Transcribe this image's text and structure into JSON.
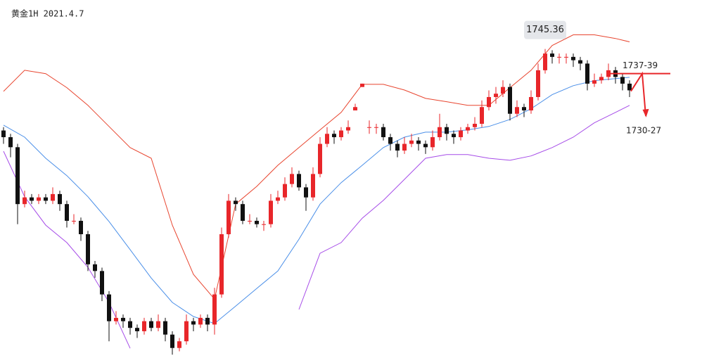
{
  "chart_data": {
    "type": "candlestick",
    "title": "黄金1H 2021.4.7",
    "ylim": [
      1653,
      1760
    ],
    "up_color": "#e8262a",
    "down_color": "#111111",
    "candles": [
      [
        1721,
        1722,
        1717,
        1719
      ],
      [
        1719,
        1720,
        1713,
        1716
      ],
      [
        1716,
        1717,
        1693,
        1699
      ],
      [
        1699,
        1703,
        1698,
        1701
      ],
      [
        1701,
        1702,
        1699,
        1700
      ],
      [
        1700,
        1702,
        1699,
        1701
      ],
      [
        1701,
        1702,
        1699,
        1700
      ],
      [
        1700,
        1704,
        1699,
        1702
      ],
      [
        1702,
        1703,
        1697,
        1699
      ],
      [
        1699,
        1700,
        1692,
        1694
      ],
      [
        1694,
        1696,
        1693,
        1694
      ],
      [
        1694,
        1695,
        1688,
        1690
      ],
      [
        1690,
        1691,
        1679,
        1681
      ],
      [
        1681,
        1682,
        1677,
        1679
      ],
      [
        1679,
        1680,
        1670,
        1672
      ],
      [
        1672,
        1673,
        1658,
        1664
      ],
      [
        1664,
        1667,
        1663,
        1665
      ],
      [
        1665,
        1666,
        1662,
        1664
      ],
      [
        1664,
        1665,
        1660,
        1662
      ],
      [
        1662,
        1663,
        1659,
        1661
      ],
      [
        1661,
        1665,
        1660,
        1664
      ],
      [
        1664,
        1665,
        1661,
        1662
      ],
      [
        1662,
        1666,
        1661,
        1664
      ],
      [
        1664,
        1665,
        1658,
        1660
      ],
      [
        1660,
        1661,
        1654,
        1656
      ],
      [
        1656,
        1659,
        1655,
        1658
      ],
      [
        1658,
        1666,
        1657,
        1664
      ],
      [
        1664,
        1665,
        1661,
        1663
      ],
      [
        1663,
        1666,
        1662,
        1665
      ],
      [
        1665,
        1666,
        1661,
        1663
      ],
      [
        1663,
        1674,
        1660,
        1672
      ],
      [
        1672,
        1692,
        1671,
        1690
      ],
      [
        1690,
        1702,
        1689,
        1700
      ],
      [
        1700,
        1701,
        1697,
        1699
      ],
      [
        1699,
        1700,
        1693,
        1694
      ],
      [
        1694,
        1696,
        1693,
        1694
      ],
      [
        1694,
        1695,
        1692,
        1693
      ],
      [
        1693,
        1694,
        1691,
        1693
      ],
      [
        1693,
        1702,
        1692,
        1700
      ],
      [
        1700,
        1703,
        1699,
        1701
      ],
      [
        1701,
        1707,
        1700,
        1705
      ],
      [
        1705,
        1710,
        1704,
        1708
      ],
      [
        1708,
        1709,
        1703,
        1704
      ],
      [
        1704,
        1705,
        1697,
        1701
      ],
      [
        1701,
        1710,
        1700,
        1708
      ],
      [
        1708,
        1719,
        1707,
        1717
      ],
      [
        1717,
        1722,
        1716,
        1720
      ],
      [
        1720,
        1721,
        1717,
        1719
      ],
      [
        1719,
        1722,
        1718,
        1721
      ],
      [
        1721,
        1724,
        1720,
        1722
      ],
      [
        1727,
        1729,
        1727,
        1728
      ],
      [
        1734,
        1735,
        1734,
        1735
      ],
      [
        1722,
        1724,
        1720,
        1722
      ],
      [
        1722,
        1723,
        1720,
        1722
      ],
      [
        1722,
        1723,
        1718,
        1719
      ],
      [
        1719,
        1720,
        1715,
        1717
      ],
      [
        1717,
        1718,
        1713,
        1715
      ],
      [
        1715,
        1719,
        1714,
        1717
      ],
      [
        1717,
        1720,
        1716,
        1718
      ],
      [
        1718,
        1719,
        1715,
        1717
      ],
      [
        1717,
        1718,
        1714,
        1716
      ],
      [
        1716,
        1721,
        1715,
        1719
      ],
      [
        1719,
        1726,
        1718,
        1722
      ],
      [
        1722,
        1723,
        1718,
        1720
      ],
      [
        1720,
        1721,
        1717,
        1719
      ],
      [
        1719,
        1722,
        1718,
        1721
      ],
      [
        1721,
        1723,
        1720,
        1722
      ],
      [
        1722,
        1725,
        1721,
        1723
      ],
      [
        1723,
        1730,
        1722,
        1728
      ],
      [
        1728,
        1733,
        1727,
        1731
      ],
      [
        1731,
        1734,
        1729,
        1732
      ],
      [
        1732,
        1736,
        1731,
        1734
      ],
      [
        1734,
        1735,
        1724,
        1726
      ],
      [
        1726,
        1730,
        1725,
        1728
      ],
      [
        1728,
        1729,
        1725,
        1727
      ],
      [
        1727,
        1733,
        1726,
        1731
      ],
      [
        1731,
        1741,
        1730,
        1739
      ],
      [
        1739,
        1745.36,
        1738,
        1744
      ],
      [
        1744,
        1745,
        1741,
        1743
      ],
      [
        1743,
        1744,
        1741,
        1743
      ],
      [
        1743,
        1744,
        1741,
        1743
      ],
      [
        1743,
        1744,
        1740,
        1742
      ],
      [
        1742,
        1743,
        1739,
        1741
      ],
      [
        1741,
        1742,
        1733,
        1735
      ],
      [
        1735,
        1738,
        1734,
        1736
      ],
      [
        1736,
        1738,
        1735,
        1737
      ],
      [
        1737,
        1741,
        1736,
        1739
      ],
      [
        1739,
        1740,
        1735,
        1737
      ],
      [
        1737,
        1738,
        1733,
        1735
      ],
      [
        1735,
        1736,
        1731,
        1733
      ]
    ],
    "band_x": [
      0,
      3,
      6,
      9,
      12,
      15,
      18,
      21,
      24,
      27,
      30,
      33,
      36,
      39,
      42,
      45,
      48,
      51,
      54,
      57,
      60,
      63,
      66,
      69,
      72,
      75,
      78,
      81,
      84,
      87,
      89
    ],
    "bands": [
      {
        "color": "#e8452f",
        "values": [
          1732.7,
          1739.0,
          1738.0,
          1733.8,
          1728.5,
          1722.2,
          1715.9,
          1712.7,
          1692.7,
          1678.0,
          1670.6,
          1699.0,
          1704.3,
          1710.6,
          1715.9,
          1721.2,
          1726.4,
          1734.8,
          1734.8,
          1733.1,
          1730.6,
          1729.6,
          1728.5,
          1728.5,
          1733.8,
          1739.0,
          1746.4,
          1749.6,
          1749.6,
          1748.5,
          1747.5
        ]
      },
      {
        "color": "#4a8fe8",
        "values": [
          1722.6,
          1719.0,
          1712.7,
          1707.5,
          1701.2,
          1693.8,
          1685.4,
          1676.9,
          1669.6,
          1665.4,
          1663.3,
          1668.5,
          1673.8,
          1679.0,
          1688.5,
          1699.0,
          1705.4,
          1710.6,
          1715.9,
          1719.0,
          1720.5,
          1720.5,
          1721.2,
          1722.2,
          1724.3,
          1727.5,
          1731.7,
          1734.4,
          1735.9,
          1736.5,
          1736.9
        ]
      },
      {
        "color": "#a64ce8",
        "values": [
          1714.8,
          1701.2,
          1692.7,
          1687.5,
          1680.1,
          1669.6,
          1655.9,
          null,
          null,
          null,
          null,
          null,
          null,
          null,
          1667.5,
          1684.3,
          1687.5,
          1694.8,
          1700.1,
          1706.4,
          1712.7,
          1713.8,
          1713.8,
          1712.7,
          1712.1,
          1713.4,
          1715.9,
          1719.0,
          1723.3,
          1726.4,
          1728.5
        ]
      }
    ],
    "high_label_candle": 77,
    "levels": [
      {
        "label": "1737-39",
        "value": 1738,
        "color": "#e8262a"
      },
      {
        "label": "1730-27",
        "value": 1728.5,
        "color": "#e8262a"
      }
    ]
  }
}
